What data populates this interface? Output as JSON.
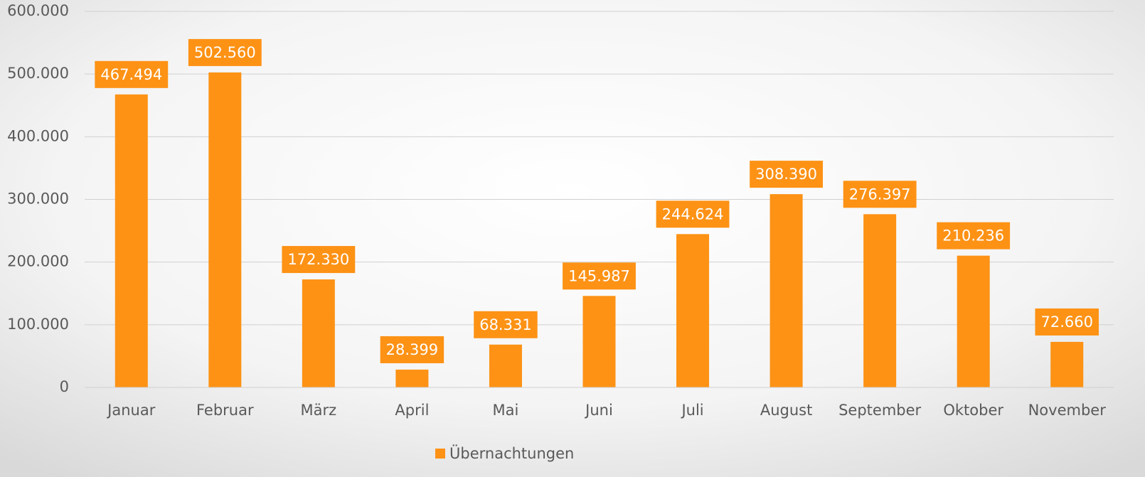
{
  "chart_data": {
    "type": "bar",
    "categories": [
      "Januar",
      "Februar",
      "März",
      "April",
      "Mai",
      "Juni",
      "Juli",
      "August",
      "September",
      "Oktober",
      "November"
    ],
    "series": [
      {
        "name": "Übernachtungen",
        "color": "#fd9215",
        "values": [
          467494,
          502560,
          172330,
          28399,
          68331,
          145987,
          244624,
          308390,
          276397,
          210236,
          72660
        ],
        "value_labels": [
          "467.494",
          "502.560",
          "172.330",
          "28.399",
          "68.331",
          "145.987",
          "244.624",
          "308.390",
          "276.397",
          "210.236",
          "72.660"
        ]
      }
    ],
    "ylim": [
      0,
      600000
    ],
    "yticks": [
      0,
      {
        "value": 100000,
        "label": "100.000"
      },
      {
        "value": 200000,
        "label": "200.000"
      },
      {
        "value": 300000,
        "label": "300.000"
      },
      {
        "value": 400000,
        "label": "400.000"
      },
      {
        "value": 500000,
        "label": "500.000"
      },
      {
        "value": 600000,
        "label": "600.000"
      }
    ],
    "grid": true,
    "legend": "bottom"
  }
}
